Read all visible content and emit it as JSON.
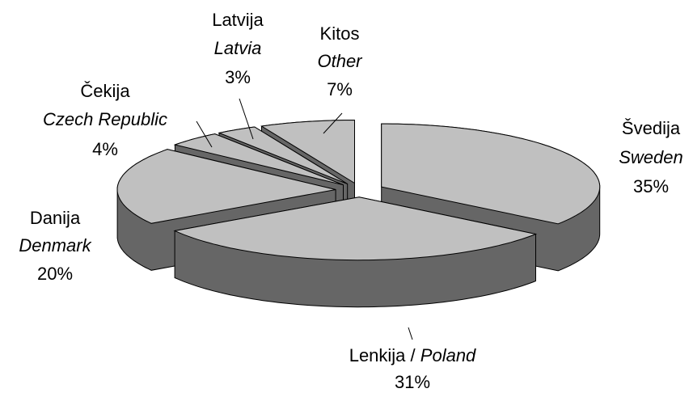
{
  "chart_data": {
    "type": "pie3d",
    "labels": [
      {
        "lt": "Švedija",
        "en": "Sweden"
      },
      {
        "lt": "Lenkija /",
        "en": "Poland"
      },
      {
        "lt": "Danija",
        "en": "Denmark"
      },
      {
        "lt": "Čekija",
        "en": "Czech Republic"
      },
      {
        "lt": "Latvija",
        "en": "Latvia"
      },
      {
        "lt": "Kitos",
        "en": "Other"
      }
    ],
    "values": [
      35,
      31,
      20,
      4,
      3,
      7
    ],
    "value_labels": [
      "35%",
      "31%",
      "20%",
      "4%",
      "3%",
      "7%"
    ],
    "top_color": "#c0c0c0",
    "side_color": "#666666",
    "edge_color": "#000000"
  }
}
